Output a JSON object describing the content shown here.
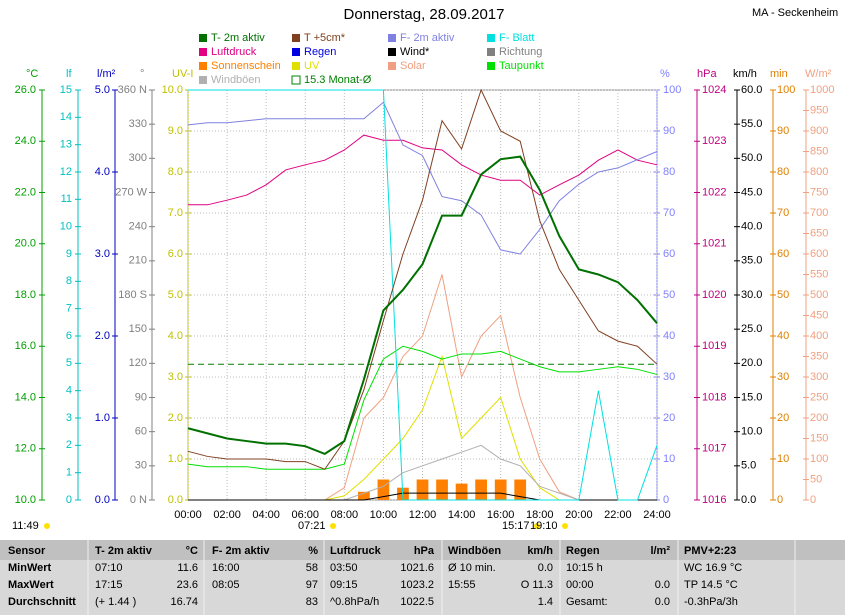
{
  "chart_data": {
    "type": "line",
    "title": "Donnerstag, 28.09.2017",
    "station": "MA - Seckenheim",
    "x": [
      0,
      1,
      2,
      3,
      4,
      5,
      6,
      7,
      8,
      9,
      10,
      11,
      12,
      13,
      14,
      15,
      16,
      17,
      18,
      19,
      20,
      21,
      22,
      23,
      24
    ],
    "xlim": [
      0,
      24
    ],
    "xticks": [
      {
        "value": 0,
        "label": "00:00"
      },
      {
        "value": 2,
        "label": "02:00"
      },
      {
        "value": 4,
        "label": "04:00"
      },
      {
        "value": 6,
        "label": "06:00"
      },
      {
        "value": 8,
        "label": "08:00"
      },
      {
        "value": 10,
        "label": "10:00"
      },
      {
        "value": 12,
        "label": "12:00"
      },
      {
        "value": 14,
        "label": "14:00"
      },
      {
        "value": 16,
        "label": "16:00"
      },
      {
        "value": 18,
        "label": "18:00"
      },
      {
        "value": 20,
        "label": "20:00"
      },
      {
        "value": 22,
        "label": "22:00"
      },
      {
        "value": 24,
        "label": "24:00"
      }
    ],
    "grid": true,
    "left_axes": [
      {
        "unit": "°C",
        "color": "#00a000",
        "lim": [
          10,
          26
        ],
        "ticks": [
          {
            "value": 10,
            "label": "10.0"
          },
          {
            "value": 12,
            "label": "12.0"
          },
          {
            "value": 14,
            "label": "14.0"
          },
          {
            "value": 16,
            "label": "16.0"
          },
          {
            "value": 18,
            "label": "18.0"
          },
          {
            "value": 20,
            "label": "20.0"
          },
          {
            "value": 22,
            "label": "22.0"
          },
          {
            "value": 24,
            "label": "24.0"
          },
          {
            "value": 26,
            "label": "26.0"
          }
        ]
      },
      {
        "unit": "lf",
        "color": "#00c0c0",
        "lim": [
          0,
          15
        ],
        "ticks": [
          0,
          1,
          2,
          3,
          4,
          5,
          6,
          7,
          8,
          9,
          10,
          11,
          12,
          13,
          14,
          15
        ]
      },
      {
        "unit": "l/m²",
        "color": "#0000c0",
        "lim": [
          0,
          5
        ],
        "ticks": [
          {
            "value": 0,
            "label": "0.0"
          },
          {
            "value": 1,
            "label": "1.0"
          },
          {
            "value": 2,
            "label": "2.0"
          },
          {
            "value": 3,
            "label": "3.0"
          },
          {
            "value": 4,
            "label": "4.0"
          },
          {
            "value": 5,
            "label": "5.0"
          }
        ]
      },
      {
        "unit": "°",
        "color": "#808080",
        "lim": [
          0,
          360
        ],
        "ticks": [
          {
            "value": 0,
            "label": "0 N"
          },
          30,
          60,
          90,
          120,
          150,
          {
            "value": 180,
            "label": "180 S"
          },
          210,
          240,
          {
            "value": 270,
            "label": "270 W"
          },
          300,
          330,
          {
            "value": 360,
            "label": "360 N"
          }
        ]
      },
      {
        "unit": "UV-I",
        "color": "#c0c000",
        "lim": [
          0,
          10
        ],
        "ticks": [
          {
            "value": 0,
            "label": "0.0"
          },
          {
            "value": 1,
            "label": "1.0"
          },
          {
            "value": 2,
            "label": "2.0"
          },
          {
            "value": 3,
            "label": "3.0"
          },
          {
            "value": 4,
            "label": "4.0"
          },
          {
            "value": 5,
            "label": "5.0"
          },
          {
            "value": 6,
            "label": "6.0"
          },
          {
            "value": 7,
            "label": "7.0"
          },
          {
            "value": 8,
            "label": "8.0"
          },
          {
            "value": 9,
            "label": "9.0"
          },
          {
            "value": 10,
            "label": "10.0"
          }
        ]
      }
    ],
    "right_axes": [
      {
        "unit": "%",
        "color": "#8080ff",
        "lim": [
          0,
          100
        ],
        "ticks": [
          0,
          10,
          20,
          30,
          40,
          50,
          60,
          70,
          80,
          90,
          100
        ]
      },
      {
        "unit": "hPa",
        "color": "#c00080",
        "lim": [
          1016,
          1024
        ],
        "ticks": [
          1016,
          1017,
          1018,
          1019,
          1020,
          1021,
          1022,
          1023,
          1024
        ]
      },
      {
        "unit": "km/h",
        "color": "#000000",
        "lim": [
          0,
          60
        ],
        "ticks": [
          {
            "value": 0,
            "label": "0.0"
          },
          {
            "value": 5,
            "label": "5.0"
          },
          {
            "value": 10,
            "label": "10.0"
          },
          {
            "value": 15,
            "label": "15.0"
          },
          {
            "value": 20,
            "label": "20.0"
          },
          {
            "value": 25,
            "label": "25.0"
          },
          {
            "value": 30,
            "label": "30.0"
          },
          {
            "value": 35,
            "label": "35.0"
          },
          {
            "value": 40,
            "label": "40.0"
          },
          {
            "value": 45,
            "label": "45.0"
          },
          {
            "value": 50,
            "label": "50.0"
          },
          {
            "value": 55,
            "label": "55.0"
          },
          {
            "value": 60,
            "label": "60.0"
          }
        ]
      },
      {
        "unit": "min",
        "color": "#e08000",
        "lim": [
          0,
          100
        ],
        "ticks": [
          0,
          10,
          20,
          30,
          40,
          50,
          60,
          70,
          80,
          90,
          100
        ]
      },
      {
        "unit": "W/m²",
        "color": "#f0a080",
        "lim": [
          0,
          1000
        ],
        "ticks": [
          0,
          50,
          100,
          150,
          200,
          250,
          300,
          350,
          400,
          450,
          500,
          550,
          600,
          650,
          700,
          750,
          800,
          850,
          900,
          950,
          1000
        ]
      }
    ],
    "series": [
      {
        "name": "T- 2m aktiv",
        "color": "#007000",
        "axis": "°C",
        "width": 2,
        "values": [
          12.8,
          12.6,
          12.4,
          12.3,
          12.2,
          12.2,
          12.1,
          11.8,
          12.3,
          14.7,
          17.4,
          18.2,
          19.2,
          21.1,
          21.1,
          22.7,
          23.3,
          23.4,
          22.1,
          20.3,
          19.0,
          18.8,
          18.5,
          17.8,
          16.9
        ]
      },
      {
        "name": "T +5cm*",
        "color": "#804020",
        "axis": "°C",
        "values": [
          11.9,
          11.7,
          11.6,
          11.6,
          11.6,
          11.5,
          11.5,
          11.2,
          12.3,
          14.3,
          17.0,
          19.6,
          21.7,
          24.8,
          23.7,
          26,
          24.4,
          24.0,
          20.9,
          19.0,
          17.8,
          16.6,
          16.2,
          16.0,
          15.3
        ]
      },
      {
        "name": "F- 2m aktiv",
        "color": "#8080e0",
        "axis": "%",
        "values": [
          91.5,
          92,
          92,
          92.5,
          93,
          93,
          93,
          93,
          93,
          93,
          97,
          86.6,
          84,
          74,
          73,
          69.5,
          61,
          60,
          66,
          73,
          77,
          80,
          81,
          83,
          85
        ]
      },
      {
        "name": "F- Blatt",
        "color": "#00e0e0",
        "axis": "lf",
        "values": [
          15,
          15,
          15,
          15,
          15,
          15,
          15,
          15,
          15,
          15,
          15,
          0,
          0,
          0,
          0,
          0,
          0,
          0,
          0,
          0,
          0,
          4,
          0,
          0,
          2
        ]
      },
      {
        "name": "Luftdruck",
        "color": "#e00080",
        "axis": "hPa",
        "values": [
          1021.76,
          1021.76,
          1021.85,
          1021.95,
          1022.15,
          1022.44,
          1022.54,
          1022.63,
          1022.83,
          1023.12,
          1023.02,
          1023.02,
          1022.87,
          1022.83,
          1022.54,
          1022.34,
          1022.24,
          1022.24,
          1021.95,
          1022.15,
          1022.34,
          1022.63,
          1022.83,
          1022.63,
          1022.54
        ]
      },
      {
        "name": "Regen",
        "color": "#0000e0",
        "axis": "l/m²"
      },
      {
        "name": "Wind*",
        "color": "#000000",
        "axis": "km/h",
        "values": [
          0,
          0,
          0,
          0,
          0,
          0,
          0,
          0,
          0,
          0,
          0.5,
          1,
          1,
          1,
          1,
          1,
          1,
          0.5,
          0,
          0,
          0,
          0,
          0,
          0,
          0
        ]
      },
      {
        "name": "Richtung",
        "color": "#808080",
        "axis": "°"
      },
      {
        "name": "Sonnenschein",
        "color": "#ff8000",
        "axis": "min",
        "bars": true,
        "values": [
          0,
          0,
          0,
          0,
          0,
          0,
          0,
          0,
          0,
          2,
          5,
          3,
          5,
          5,
          4,
          5,
          5,
          5,
          0,
          0,
          0,
          0,
          0,
          0,
          0
        ]
      },
      {
        "name": "UV",
        "color": "#e0e000",
        "axis": "UV-I",
        "values": [
          0,
          0,
          0,
          0,
          0,
          0,
          0,
          0,
          0.1,
          0.5,
          1.0,
          1.5,
          2.2,
          3.5,
          1.5,
          2.0,
          2.5,
          1.0,
          0.3,
          0,
          0,
          0,
          0,
          0,
          0
        ]
      },
      {
        "name": "Solar",
        "color": "#f0a080",
        "axis": "W/m²",
        "values": [
          0,
          0,
          0,
          0,
          0,
          0,
          0,
          0,
          30,
          200,
          250,
          350,
          400,
          550,
          300,
          400,
          450,
          250,
          100,
          20,
          0,
          0,
          0,
          0,
          0
        ]
      },
      {
        "name": "Taupunkt",
        "color": "#00e000",
        "axis": "°C",
        "values": [
          11.4,
          11.3,
          11.3,
          11.3,
          11.2,
          11.2,
          11.2,
          11.2,
          11.4,
          13.9,
          15.5,
          16.0,
          15.8,
          15.5,
          15.7,
          15.7,
          15.8,
          15.5,
          15.2,
          15.0,
          15.0,
          15.1,
          15.2,
          15.1,
          14.9
        ]
      },
      {
        "name": "Windböen",
        "color": "#b0b0b0",
        "axis": "km/h",
        "values": [
          0,
          0,
          0,
          0,
          0,
          0,
          0,
          0,
          0,
          1,
          2,
          4,
          5,
          6,
          7,
          8,
          6,
          5,
          2,
          1,
          0,
          0,
          0,
          0,
          0
        ]
      },
      {
        "name": "15.3 Monat-Ø",
        "color": "#008000",
        "axis": "°C",
        "value": 15.3,
        "dashed": true
      }
    ],
    "sun_labels": [
      "11:49",
      "07:21",
      "15:17",
      "19:10"
    ],
    "table": {
      "header": [
        "Sensor",
        "T- 2m aktiv",
        "°C",
        "F- 2m aktiv",
        "%",
        "Luftdruck",
        "hPa",
        "Windböen",
        "km/h",
        "Regen",
        "l/m²",
        "PMV+2:23"
      ],
      "rows": [
        [
          "MinWert",
          "07:10",
          "11.6",
          "16:00",
          "58",
          "03:50",
          "1021.6",
          "Ø 10 min.",
          "0.0",
          "10:15 h",
          null,
          "WC 16.9 °C"
        ],
        [
          "MaxWert",
          "17:15",
          "23.6",
          "08:05",
          "97",
          "09:15",
          "1023.2",
          "15:55",
          "O 11.3",
          "00:00",
          "0.0",
          "TP 14.5 °C"
        ],
        [
          "Durchschnitt",
          "(+ 1.44 )",
          "16.74",
          null,
          "83",
          "^0.8hPa/h",
          "1022.5",
          null,
          "1.4",
          "Gesamt:",
          "0.0",
          "-0.3hPa/3h"
        ]
      ]
    }
  }
}
